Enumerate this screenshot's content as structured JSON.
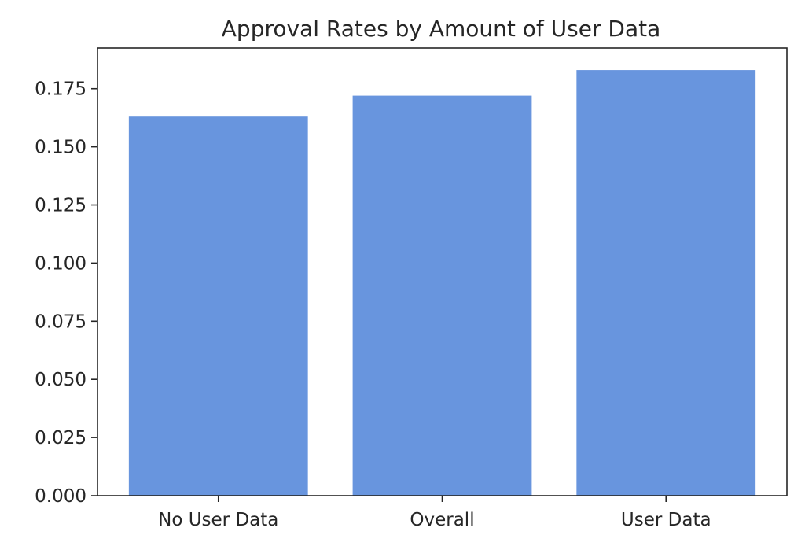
{
  "chart_data": {
    "type": "bar",
    "title": "Approval Rates by Amount of User Data",
    "xlabel": "",
    "ylabel": "",
    "categories": [
      "No User Data",
      "Overall",
      "User Data"
    ],
    "values": [
      0.163,
      0.172,
      0.183
    ],
    "ylim": [
      0,
      0.1925
    ],
    "yticks": [
      0.0,
      0.025,
      0.05,
      0.075,
      0.1,
      0.125,
      0.15,
      0.175
    ],
    "ytick_labels": [
      "0.000",
      "0.025",
      "0.050",
      "0.075",
      "0.100",
      "0.125",
      "0.150",
      "0.175"
    ],
    "bar_color": "#6895de",
    "grid": false,
    "legend": "none"
  }
}
